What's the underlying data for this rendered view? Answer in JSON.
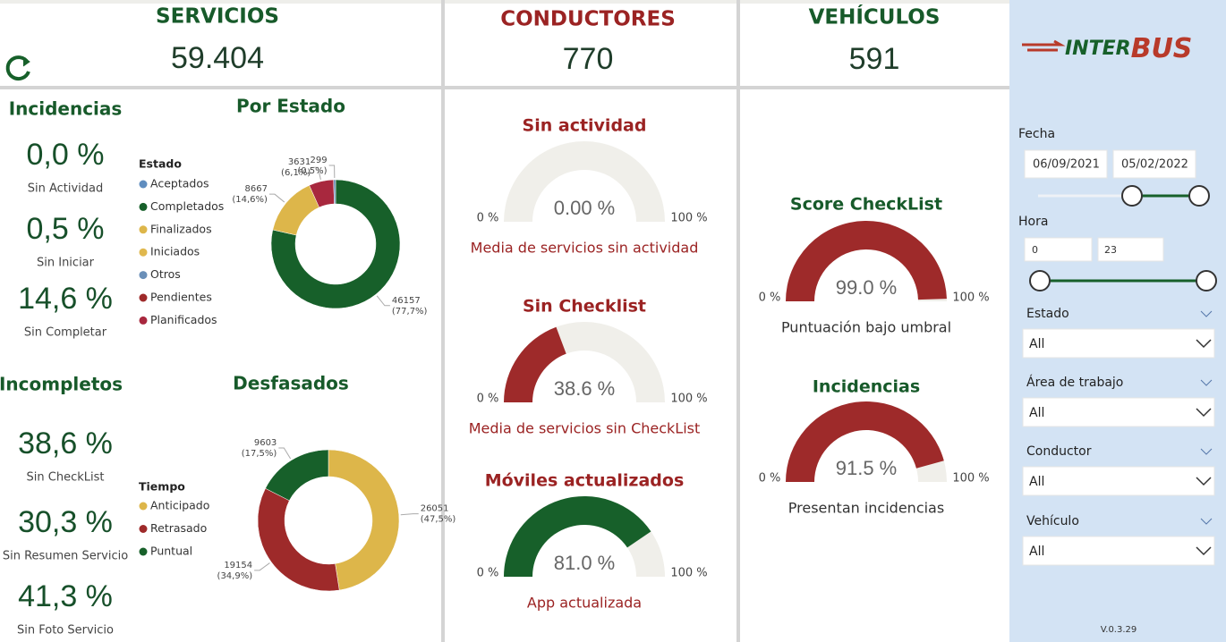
{
  "header": {
    "servicios": {
      "title": "SERVICIOS",
      "value": "59.404"
    },
    "conductores": {
      "title": "CONDUCTORES",
      "value": "770"
    },
    "vehiculos": {
      "title": "VEHÍCULOS",
      "value": "591"
    }
  },
  "incidencias": {
    "title": "Incidencias",
    "items": [
      {
        "value": "0,0 %",
        "label": "Sin Actividad"
      },
      {
        "value": "0,5 %",
        "label": "Sin Iniciar"
      },
      {
        "value": "14,6 %",
        "label": "Sin Completar"
      }
    ]
  },
  "incompletos": {
    "title": "Incompletos",
    "items": [
      {
        "value": "38,6 %",
        "label": "Sin CheckList"
      },
      {
        "value": "30,3 %",
        "label": "Sin Resumen Servicio"
      },
      {
        "value": "41,3 %",
        "label": "Sin Foto Servicio"
      }
    ]
  },
  "por_estado": {
    "title": "Por Estado",
    "legend_title": "Estado",
    "legend": [
      {
        "name": "Aceptados",
        "color": "#5f8dbf"
      },
      {
        "name": "Completados",
        "color": "#17602a"
      },
      {
        "name": "Finalizados",
        "color": "#ddb64a"
      },
      {
        "name": "Iniciados",
        "color": "#e0b84e"
      },
      {
        "name": "Otros",
        "color": "#6a8fb8"
      },
      {
        "name": "Pendientes",
        "color": "#9e2a2a"
      },
      {
        "name": "Planificados",
        "color": "#a8283e"
      }
    ],
    "segments": [
      {
        "value": 46157,
        "pct": "(77,7%)",
        "color": "#17602a"
      },
      {
        "value": 8667,
        "pct": "(14,6%)",
        "color": "#ddb64a"
      },
      {
        "value": 3631,
        "pct": "(6,1%)",
        "color": "#a8283e"
      },
      {
        "value": 299,
        "pct": "(0,5%)",
        "color": "#6a8fb8"
      }
    ]
  },
  "desfasados": {
    "title": "Desfasados",
    "legend_title": "Tiempo",
    "legend": [
      {
        "name": "Anticipado",
        "color": "#ddb64a"
      },
      {
        "name": "Retrasado",
        "color": "#9e2a2a"
      },
      {
        "name": "Puntual",
        "color": "#17602a"
      }
    ],
    "segments": [
      {
        "value": 26051,
        "pct": "(47,5%)",
        "color": "#ddb64a"
      },
      {
        "value": 19154,
        "pct": "(34,9%)",
        "color": "#9e2a2a"
      },
      {
        "value": 9603,
        "pct": "(17,5%)",
        "color": "#17602a"
      }
    ]
  },
  "conductores_gauges": [
    {
      "title": "Sin actividad",
      "value": 0,
      "value_label": "0.00 %",
      "min": {
        "value": 0,
        "label": "0 %"
      },
      "max": {
        "value": 100,
        "label": "100 %"
      },
      "caption": "Media de servicios sin actividad",
      "color": "#9e2a2a"
    },
    {
      "title": "Sin Checklist",
      "value": 38.6,
      "value_label": "38.6 %",
      "min": {
        "value": 0,
        "label": "0 %"
      },
      "max": {
        "value": 100,
        "label": "100 %"
      },
      "caption": "Media de servicios sin CheckList",
      "color": "#9e2a2a"
    },
    {
      "title": "Móviles actualizados",
      "value": 81.0,
      "value_label": "81.0 %",
      "min": {
        "value": 0,
        "label": "0 %"
      },
      "max": {
        "value": 100,
        "label": "100 %"
      },
      "caption": "App actualizada",
      "color": "#17602a"
    }
  ],
  "vehiculos_gauges": [
    {
      "title": "Score CheckList",
      "value": 99.0,
      "value_label": "99.0 %",
      "min": {
        "value": 0,
        "label": "0 %"
      },
      "max": {
        "value": 100,
        "label": "100 %"
      },
      "caption": "Puntuación bajo umbral",
      "color": "#9e2a2a"
    },
    {
      "title": "Incidencias",
      "value": 91.5,
      "value_label": "91.5 %",
      "min": {
        "value": 0,
        "label": "0 %"
      },
      "max": {
        "value": 100,
        "label": "100 %"
      },
      "caption": "Presentan incidencias",
      "color": "#9e2a2a"
    }
  ],
  "sidebar": {
    "logo": {
      "left": "INTER",
      "right": "BUS"
    },
    "fecha": {
      "label": "Fecha",
      "from": "06/09/2021",
      "to": "05/02/2022"
    },
    "hora": {
      "label": "Hora",
      "from": "0",
      "to": "23"
    },
    "filters": [
      {
        "label": "Estado",
        "value": "All"
      },
      {
        "label": "Área de trabajo",
        "value": "All"
      },
      {
        "label": "Conductor",
        "value": "All"
      },
      {
        "label": "Vehículo",
        "value": "All"
      }
    ],
    "version": "V.0.3.29"
  }
}
